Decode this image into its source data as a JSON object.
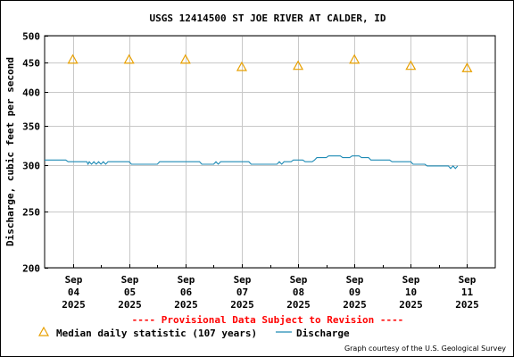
{
  "chart_data": {
    "type": "line",
    "title": "USGS 12414500 ST JOE RIVER AT CALDER, ID",
    "ylabel": "Discharge, cubic feet per second",
    "xlabel": "",
    "yscale": "log",
    "ylim": [
      200,
      500
    ],
    "yticks": [
      {
        "value": 200,
        "label": "200"
      },
      {
        "value": 250,
        "label": "250"
      },
      {
        "value": 300,
        "label": "300"
      },
      {
        "value": 350,
        "label": "350"
      },
      {
        "value": 400,
        "label": "400"
      },
      {
        "value": 450,
        "label": "450"
      },
      {
        "value": 500,
        "label": "500"
      }
    ],
    "xlim": [
      "2025-09-03T12:00",
      "2025-09-11T12:00"
    ],
    "xticks": [
      {
        "date": "2025-09-04T00:00",
        "month": "Sep",
        "day": "04",
        "year": "2025"
      },
      {
        "date": "2025-09-05T00:00",
        "month": "Sep",
        "day": "05",
        "year": "2025"
      },
      {
        "date": "2025-09-06T00:00",
        "month": "Sep",
        "day": "06",
        "year": "2025"
      },
      {
        "date": "2025-09-07T00:00",
        "month": "Sep",
        "day": "07",
        "year": "2025"
      },
      {
        "date": "2025-09-08T00:00",
        "month": "Sep",
        "day": "08",
        "year": "2025"
      },
      {
        "date": "2025-09-09T00:00",
        "month": "Sep",
        "day": "09",
        "year": "2025"
      },
      {
        "date": "2025-09-10T00:00",
        "month": "Sep",
        "day": "10",
        "year": "2025"
      },
      {
        "date": "2025-09-11T00:00",
        "month": "Sep",
        "day": "11",
        "year": "2025"
      }
    ],
    "grid": true,
    "series": [
      {
        "name": "Discharge",
        "color": "#1f8bb5",
        "style": "line",
        "points": [
          [
            "2025-09-03T12:00",
            306
          ],
          [
            "2025-09-03T21:00",
            306
          ],
          [
            "2025-09-03T22:00",
            304
          ],
          [
            "2025-09-04T06:00",
            304
          ],
          [
            "2025-09-04T06:30",
            301
          ],
          [
            "2025-09-04T07:00",
            304
          ],
          [
            "2025-09-04T08:00",
            301
          ],
          [
            "2025-09-04T09:00",
            304
          ],
          [
            "2025-09-04T10:00",
            301
          ],
          [
            "2025-09-04T11:00",
            304
          ],
          [
            "2025-09-04T12:00",
            301
          ],
          [
            "2025-09-04T13:00",
            304
          ],
          [
            "2025-09-04T14:00",
            301
          ],
          [
            "2025-09-04T15:00",
            304
          ],
          [
            "2025-09-05T00:00",
            304
          ],
          [
            "2025-09-05T01:00",
            301
          ],
          [
            "2025-09-05T12:00",
            301
          ],
          [
            "2025-09-05T13:00",
            304
          ],
          [
            "2025-09-06T06:00",
            304
          ],
          [
            "2025-09-06T07:00",
            301
          ],
          [
            "2025-09-06T12:00",
            301
          ],
          [
            "2025-09-06T13:00",
            304
          ],
          [
            "2025-09-06T14:00",
            301
          ],
          [
            "2025-09-06T15:00",
            304
          ],
          [
            "2025-09-07T03:00",
            304
          ],
          [
            "2025-09-07T04:00",
            301
          ],
          [
            "2025-09-07T15:00",
            301
          ],
          [
            "2025-09-07T16:00",
            304
          ],
          [
            "2025-09-07T17:00",
            301
          ],
          [
            "2025-09-07T18:00",
            304
          ],
          [
            "2025-09-07T21:00",
            304
          ],
          [
            "2025-09-07T22:00",
            306
          ],
          [
            "2025-09-08T02:00",
            306
          ],
          [
            "2025-09-08T03:00",
            304
          ],
          [
            "2025-09-08T06:00",
            304
          ],
          [
            "2025-09-08T07:00",
            306
          ],
          [
            "2025-09-08T08:00",
            309
          ],
          [
            "2025-09-08T12:00",
            309
          ],
          [
            "2025-09-08T13:00",
            311
          ],
          [
            "2025-09-08T18:00",
            311
          ],
          [
            "2025-09-08T19:00",
            309
          ],
          [
            "2025-09-08T22:00",
            309
          ],
          [
            "2025-09-08T23:00",
            311
          ],
          [
            "2025-09-09T02:00",
            311
          ],
          [
            "2025-09-09T03:00",
            309
          ],
          [
            "2025-09-09T06:00",
            309
          ],
          [
            "2025-09-09T07:00",
            306
          ],
          [
            "2025-09-09T15:00",
            306
          ],
          [
            "2025-09-09T16:00",
            304
          ],
          [
            "2025-09-10T00:00",
            304
          ],
          [
            "2025-09-10T01:00",
            301
          ],
          [
            "2025-09-10T06:00",
            301
          ],
          [
            "2025-09-10T07:00",
            299
          ],
          [
            "2025-09-10T16:00",
            299
          ],
          [
            "2025-09-10T17:00",
            296
          ],
          [
            "2025-09-10T18:00",
            299
          ],
          [
            "2025-09-10T19:00",
            296
          ],
          [
            "2025-09-10T20:00",
            299
          ]
        ]
      },
      {
        "name": "Median daily statistic (107 years)",
        "color": "#e8a000",
        "style": "marker-triangle",
        "points": [
          [
            "2025-09-04T00:00",
            455
          ],
          [
            "2025-09-05T00:00",
            455
          ],
          [
            "2025-09-06T00:00",
            455
          ],
          [
            "2025-09-07T00:00",
            442
          ],
          [
            "2025-09-08T00:00",
            444
          ],
          [
            "2025-09-09T00:00",
            455
          ],
          [
            "2025-09-10T00:00",
            444
          ],
          [
            "2025-09-11T00:00",
            440
          ]
        ]
      }
    ],
    "provisional_note": "---- Provisional Data Subject to Revision ----",
    "legend": {
      "position": "bottom",
      "median_label": "Median daily statistic (107 years)",
      "discharge_label": "Discharge"
    },
    "credit": "Graph courtesy of the U.S. Geological Survey"
  }
}
